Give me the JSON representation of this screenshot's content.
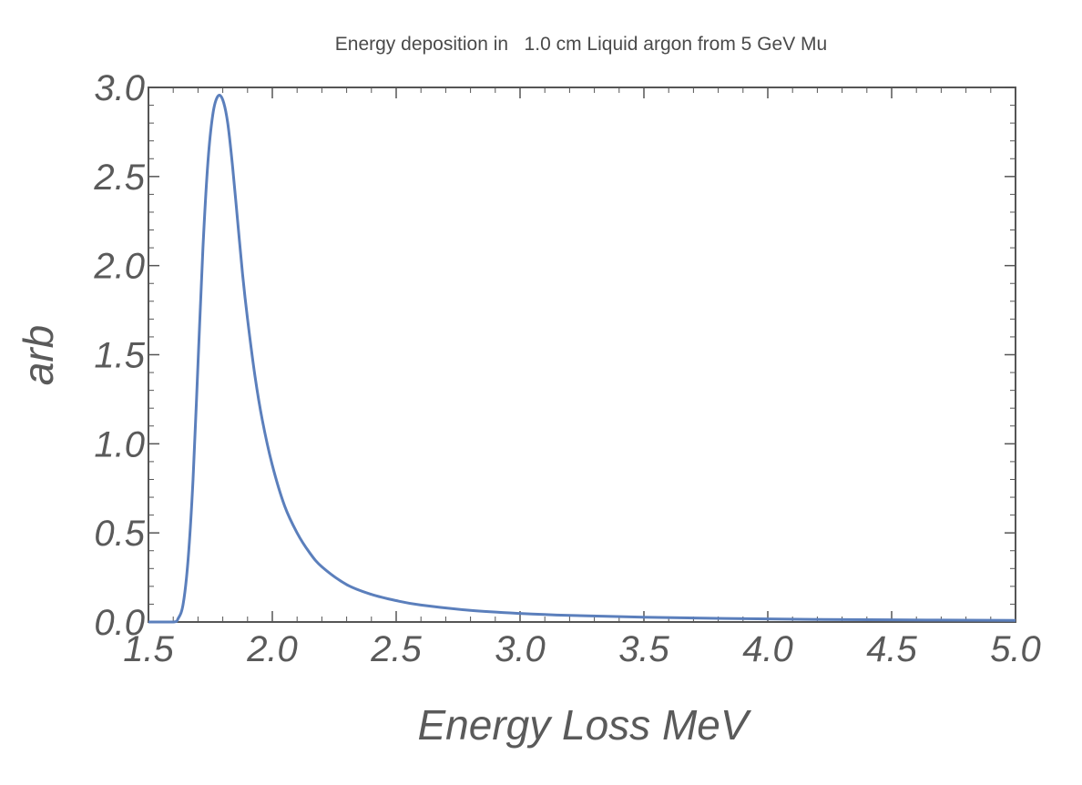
{
  "chart_data": {
    "type": "line",
    "title": "Energy deposition in   1.0 cm Liquid argon from 5 GeV Mu",
    "xlabel": "Energy Loss MeV",
    "ylabel": "arb",
    "xlim": [
      1.5,
      5.0
    ],
    "ylim": [
      0.0,
      3.0
    ],
    "x_ticks": [
      "1.5",
      "2.0",
      "2.5",
      "3.0",
      "3.5",
      "4.0",
      "4.5",
      "5.0"
    ],
    "y_ticks": [
      "0.0",
      "0.5",
      "1.0",
      "1.5",
      "2.0",
      "2.5",
      "3.0"
    ],
    "grid": false,
    "line_color": "#5b7fbc",
    "series": [
      {
        "x": [
          1.5,
          1.6,
          1.62,
          1.64,
          1.66,
          1.68,
          1.7,
          1.72,
          1.74,
          1.76,
          1.78,
          1.8,
          1.82,
          1.84,
          1.86,
          1.88,
          1.9,
          1.93,
          1.96,
          2.0,
          2.05,
          2.1,
          2.15,
          2.2,
          2.3,
          2.4,
          2.5,
          2.6,
          2.8,
          3.0,
          3.2,
          3.5,
          4.0,
          4.5,
          5.0
        ],
        "y": [
          0.0,
          0.0,
          0.02,
          0.1,
          0.35,
          0.8,
          1.45,
          2.1,
          2.58,
          2.85,
          2.95,
          2.93,
          2.8,
          2.55,
          2.25,
          1.95,
          1.7,
          1.38,
          1.13,
          0.88,
          0.65,
          0.5,
          0.39,
          0.31,
          0.21,
          0.155,
          0.12,
          0.095,
          0.065,
          0.048,
          0.037,
          0.027,
          0.017,
          0.012,
          0.009
        ]
      }
    ]
  }
}
